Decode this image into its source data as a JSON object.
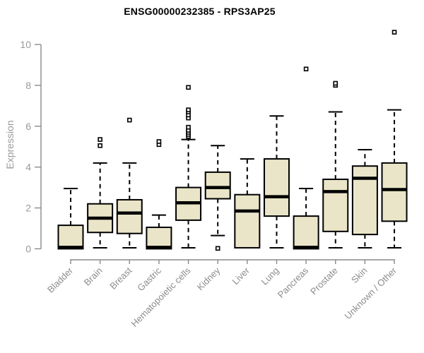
{
  "title": "ENSG00000232385 - RPS3AP25",
  "chart_data": {
    "type": "boxplot",
    "title": "ENSG00000232385 - RPS3AP25",
    "xlabel": "",
    "ylabel": "Expression",
    "ylim": [
      0,
      10.9
    ],
    "yticks": [
      0,
      2,
      4,
      6,
      8,
      10
    ],
    "grid": false,
    "legend": null,
    "colors": {
      "box_fill": "#EAE5C8",
      "box_stroke": "#000000",
      "median": "#000000",
      "whisker": "#000000",
      "axis": "#8a8a8a",
      "tick_label": "#999999",
      "category_label": "#8c8c8c",
      "title_color": "#000000",
      "background": "#ffffff"
    },
    "categories": [
      "Bladder",
      "Brain",
      "Breast",
      "Gastric",
      "Hematopoietic cells",
      "Kidney",
      "Liver",
      "Lung",
      "Pancreas",
      "Prostate",
      "Skin",
      "Unknown / Other"
    ],
    "series": [
      {
        "category": "Bladder",
        "whisker_low": 0,
        "q1": 0,
        "median": 0.07,
        "q3": 1.15,
        "whisker_high": 2.95,
        "outliers": []
      },
      {
        "category": "Brain",
        "whisker_low": 0.05,
        "q1": 0.8,
        "median": 1.5,
        "q3": 2.2,
        "whisker_high": 4.2,
        "outliers": [
          5.05,
          5.35
        ]
      },
      {
        "category": "Breast",
        "whisker_low": 0.05,
        "q1": 0.75,
        "median": 1.75,
        "q3": 2.4,
        "whisker_high": 4.2,
        "outliers": [
          6.3
        ]
      },
      {
        "category": "Gastric",
        "whisker_low": 0,
        "q1": 0,
        "median": 0.07,
        "q3": 1.05,
        "whisker_high": 1.65,
        "outliers": [
          5.1,
          5.25
        ]
      },
      {
        "category": "Hematopoietic cells",
        "whisker_low": 0.05,
        "q1": 1.4,
        "median": 2.25,
        "q3": 3.0,
        "whisker_high": 5.35,
        "outliers": [
          5.5,
          5.6,
          5.7,
          5.8,
          5.95,
          6.4,
          6.55,
          6.7,
          6.8,
          7.9
        ]
      },
      {
        "category": "Kidney",
        "whisker_low": 0.65,
        "q1": 2.45,
        "median": 3.0,
        "q3": 3.75,
        "whisker_high": 5.05,
        "outliers": [
          0.02
        ]
      },
      {
        "category": "Liver",
        "whisker_low": 0.05,
        "q1": 0.05,
        "median": 1.85,
        "q3": 2.65,
        "whisker_high": 4.4,
        "outliers": []
      },
      {
        "category": "Lung",
        "whisker_low": 0.05,
        "q1": 1.6,
        "median": 2.55,
        "q3": 4.4,
        "whisker_high": 6.5,
        "outliers": []
      },
      {
        "category": "Pancreas",
        "whisker_low": 0,
        "q1": 0,
        "median": 0.07,
        "q3": 1.6,
        "whisker_high": 2.95,
        "outliers": [
          8.8
        ]
      },
      {
        "category": "Prostate",
        "whisker_low": 0.05,
        "q1": 0.85,
        "median": 2.8,
        "q3": 3.4,
        "whisker_high": 6.7,
        "outliers": [
          8.0,
          8.1
        ]
      },
      {
        "category": "Skin",
        "whisker_low": 0.05,
        "q1": 0.7,
        "median": 3.45,
        "q3": 4.05,
        "whisker_high": 4.85,
        "outliers": []
      },
      {
        "category": "Unknown / Other",
        "whisker_low": 0.05,
        "q1": 1.35,
        "median": 2.9,
        "q3": 4.2,
        "whisker_high": 6.8,
        "outliers": [
          10.6
        ]
      }
    ]
  }
}
